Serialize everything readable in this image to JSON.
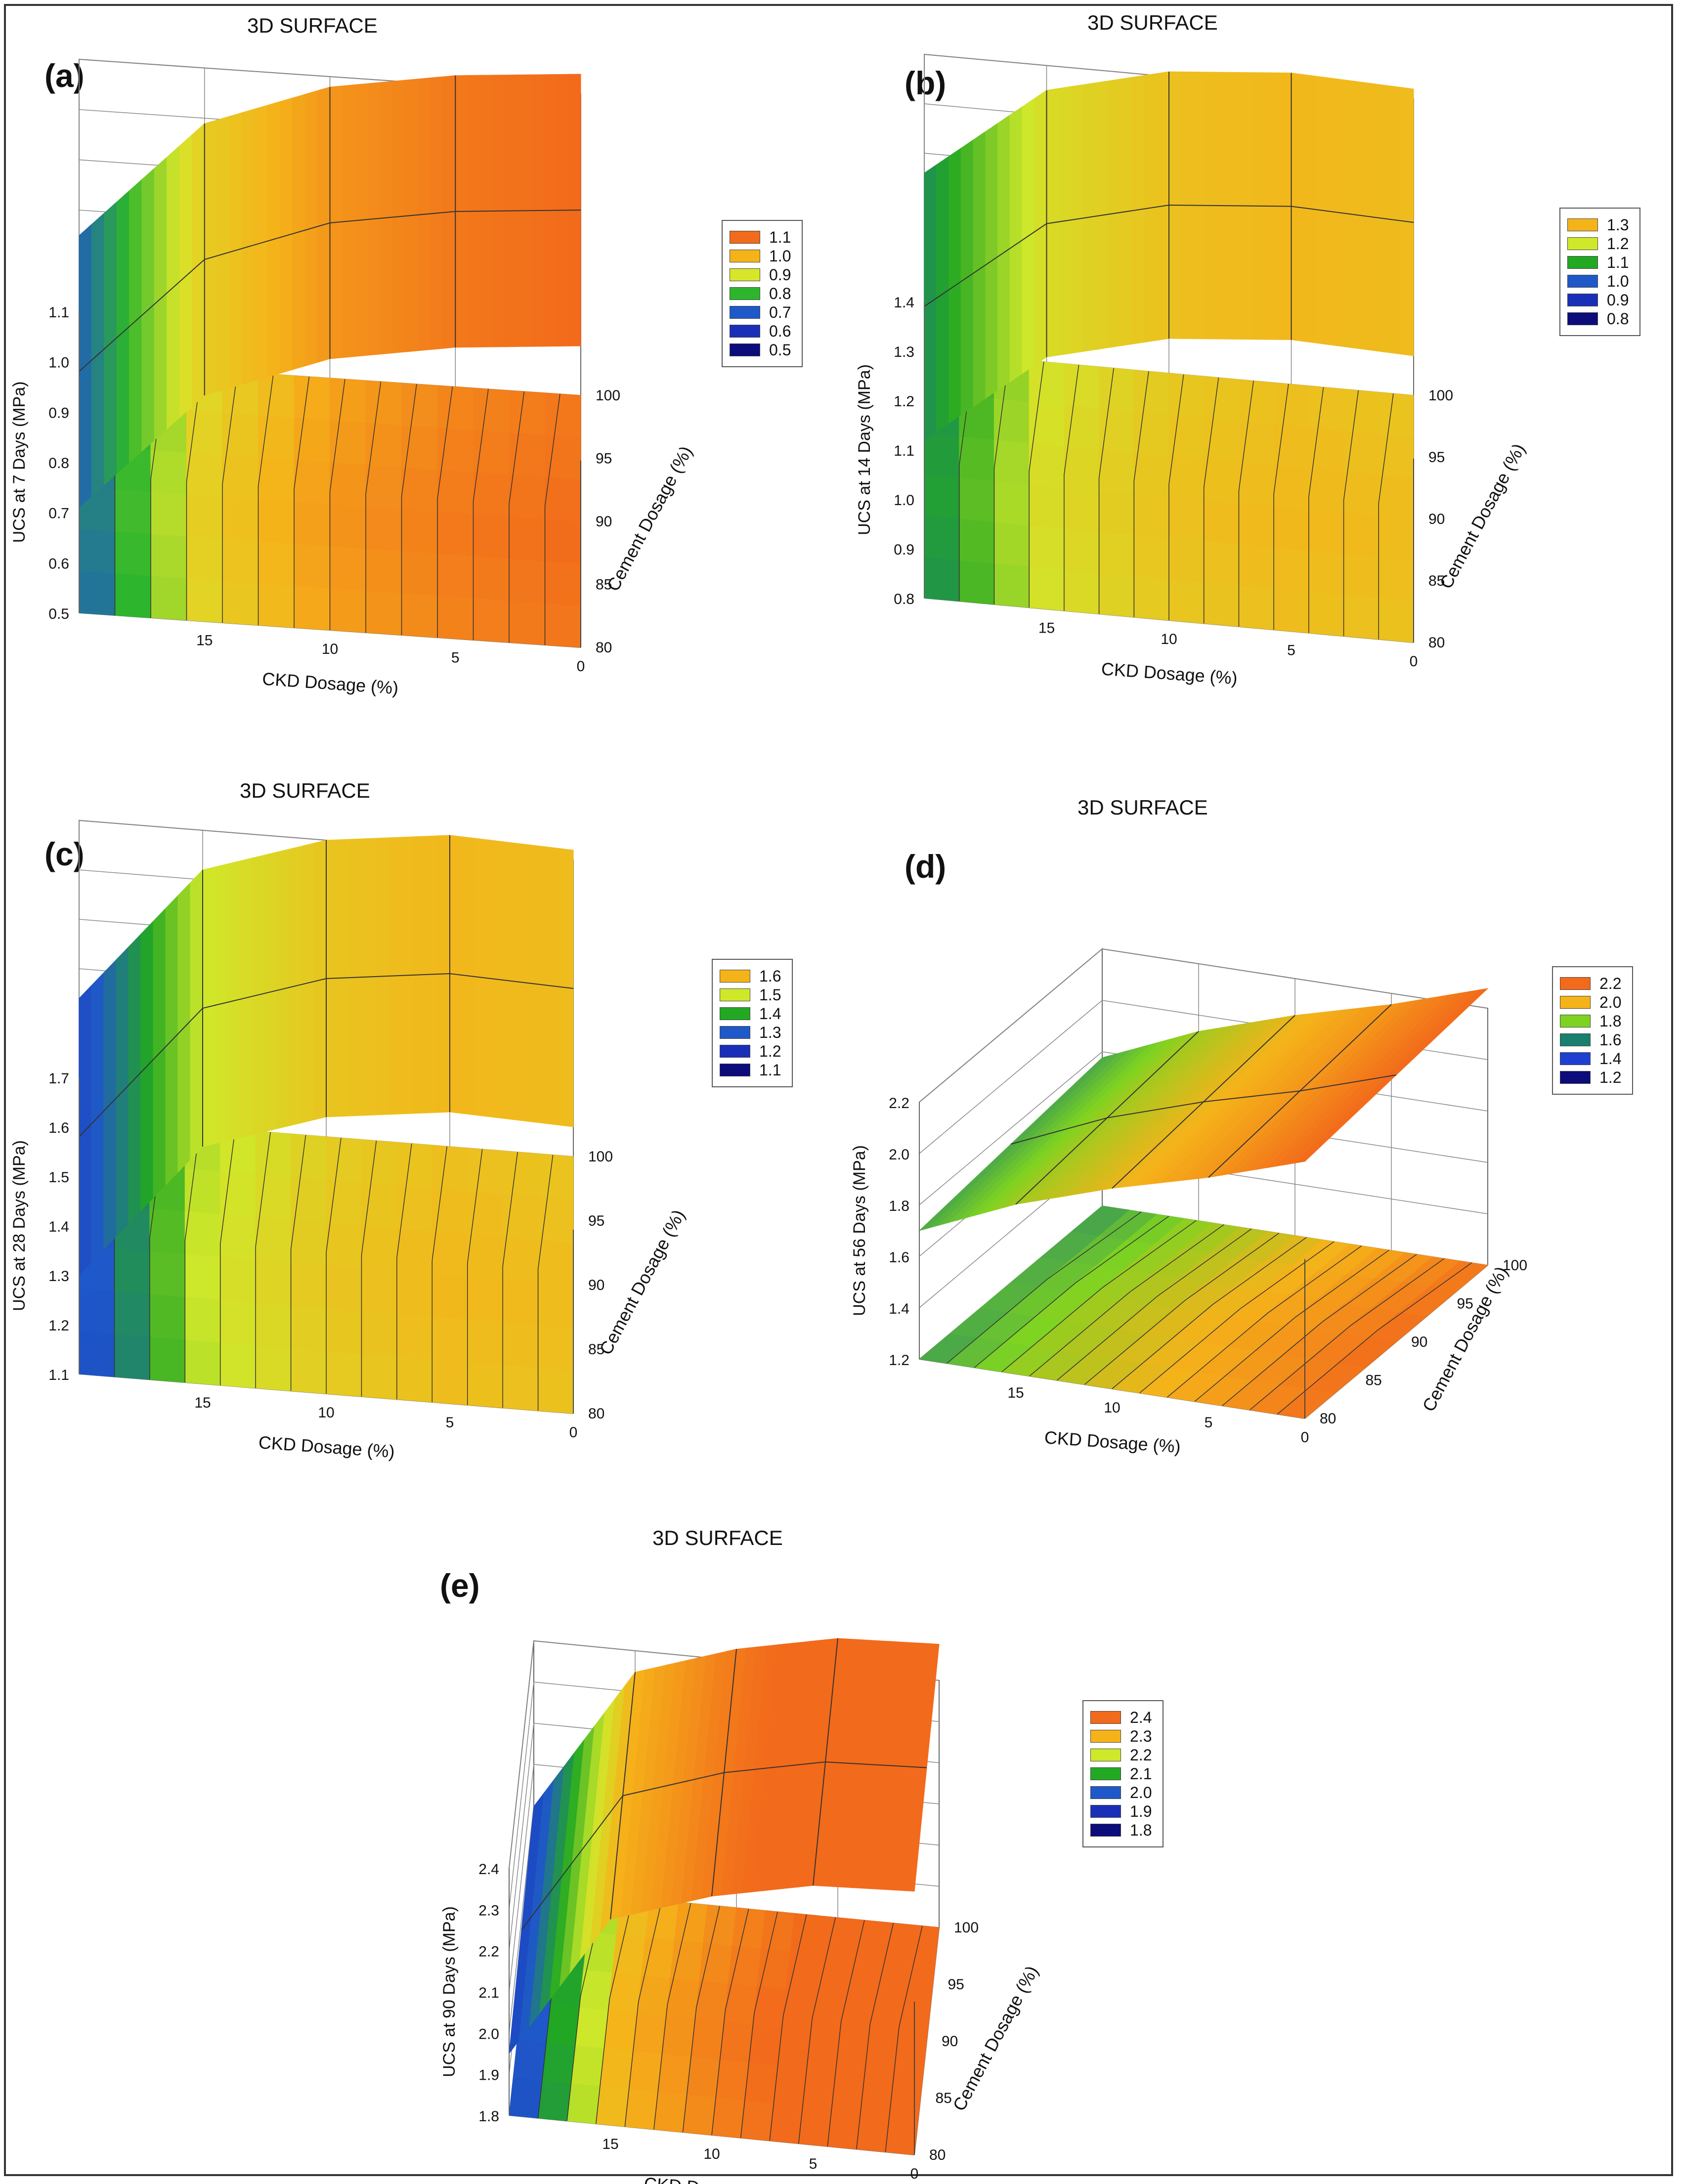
{
  "figure": {
    "border_color": "#333333"
  },
  "chart_data": [
    {
      "type": "3d-surface",
      "panel_label": "(a)",
      "title": "3D SURFACE",
      "xlabel": "CKD Dosage (%)",
      "ylabel": "Cement Dosage (%)",
      "zlabel": "UCS at 7 Days (MPa)",
      "x_ticks": [
        "15",
        "10",
        "5",
        "0"
      ],
      "y_ticks": [
        "80",
        "85",
        "90",
        "95",
        "100"
      ],
      "z_ticks": [
        "0.5",
        "0.6",
        "0.7",
        "0.8",
        "0.9",
        "1.0",
        "1.1"
      ],
      "zlim": [
        0.5,
        1.1
      ],
      "surface_profile": [
        0.71,
        0.95,
        1.04,
        1.08,
        1.1
      ],
      "legend": [
        {
          "label": "1.1",
          "color": "#f26a1b"
        },
        {
          "label": "1.0",
          "color": "#f5b31a"
        },
        {
          "label": "0.9",
          "color": "#d7e62a"
        },
        {
          "label": "0.8",
          "color": "#2db52d"
        },
        {
          "label": "0.7",
          "color": "#1f58c8"
        },
        {
          "label": "0.6",
          "color": "#1a2fb8"
        },
        {
          "label": "0.5",
          "color": "#0c0c7a"
        }
      ]
    },
    {
      "type": "3d-surface",
      "panel_label": "(b)",
      "title": "3D SURFACE",
      "xlabel": "CKD Dosage (%)",
      "ylabel": "Cement Dosage (%)",
      "zlabel": "UCS at 14 Days (MPa)",
      "x_ticks": [
        "15",
        "10",
        "5",
        "0"
      ],
      "y_ticks": [
        "80",
        "85",
        "90",
        "95",
        "100"
      ],
      "z_ticks": [
        "0.8",
        "0.9",
        "1.0",
        "1.1",
        "1.2",
        "1.3",
        "1.4"
      ],
      "zlim": [
        0.8,
        1.4
      ],
      "surface_profile": [
        1.12,
        1.31,
        1.37,
        1.39,
        1.38
      ],
      "legend": [
        {
          "label": "1.3",
          "color": "#f5b31a"
        },
        {
          "label": "1.2",
          "color": "#cfe82a"
        },
        {
          "label": "1.1",
          "color": "#22a822"
        },
        {
          "label": "1.0",
          "color": "#1f58c8"
        },
        {
          "label": "0.9",
          "color": "#1a2fb8"
        },
        {
          "label": "0.8",
          "color": "#0c0c7a"
        }
      ]
    },
    {
      "type": "3d-surface",
      "panel_label": "(c)",
      "title": "3D SURFACE",
      "xlabel": "CKD Dosage (%)",
      "ylabel": "Cement Dosage (%)",
      "zlabel": "UCS at 28 Days (MPa)",
      "x_ticks": [
        "15",
        "10",
        "5",
        "0"
      ],
      "y_ticks": [
        "80",
        "85",
        "90",
        "95",
        "100"
      ],
      "z_ticks": [
        "1.1",
        "1.2",
        "1.3",
        "1.4",
        "1.5",
        "1.6",
        "1.7"
      ],
      "zlim": [
        1.1,
        1.7
      ],
      "surface_profile": [
        1.3,
        1.58,
        1.66,
        1.69,
        1.68
      ],
      "legend": [
        {
          "label": "1.6",
          "color": "#f5b31a"
        },
        {
          "label": "1.5",
          "color": "#cfe82a"
        },
        {
          "label": "1.4",
          "color": "#22a822"
        },
        {
          "label": "1.3",
          "color": "#1f58c8"
        },
        {
          "label": "1.2",
          "color": "#1a2fb8"
        },
        {
          "label": "1.1",
          "color": "#0c0c7a"
        }
      ]
    },
    {
      "type": "3d-surface",
      "panel_label": "(d)",
      "title": "3D SURFACE",
      "xlabel": "CKD Dosage (%)",
      "ylabel": "Cement Dosage (%)",
      "zlabel": "UCS at 56 Days (MPa)",
      "x_ticks": [
        "15",
        "10",
        "5",
        "0"
      ],
      "y_ticks": [
        "80",
        "85",
        "90",
        "95",
        "100"
      ],
      "z_ticks": [
        "1.2",
        "1.4",
        "1.6",
        "1.8",
        "2.0",
        "2.2"
      ],
      "zlim": [
        1.2,
        2.2
      ],
      "surface_profile": [
        1.7,
        1.86,
        1.98,
        2.08,
        2.2
      ],
      "legend": [
        {
          "label": "2.2",
          "color": "#f26a1b"
        },
        {
          "label": "2.0",
          "color": "#f5b31a"
        },
        {
          "label": "1.8",
          "color": "#7ed321"
        },
        {
          "label": "1.6",
          "color": "#1a7f6e"
        },
        {
          "label": "1.4",
          "color": "#1f3fd0"
        },
        {
          "label": "1.2",
          "color": "#0c0c7a"
        }
      ]
    },
    {
      "type": "3d-surface",
      "panel_label": "(e)",
      "title": "3D SURFACE",
      "xlabel": "CKD Dosage (%)",
      "ylabel": "Cement Dosage (%)",
      "zlabel": "UCS at 90 Days (MPa)",
      "x_ticks": [
        "15",
        "10",
        "5",
        "0"
      ],
      "y_ticks": [
        "80",
        "85",
        "90",
        "95",
        "100"
      ],
      "z_ticks": [
        "1.8",
        "1.9",
        "2.0",
        "2.1",
        "2.2",
        "2.3",
        "2.4"
      ],
      "zlim": [
        1.8,
        2.4
      ],
      "surface_profile": [
        1.95,
        2.3,
        2.38,
        2.43,
        2.44
      ],
      "legend": [
        {
          "label": "2.4",
          "color": "#f26a1b"
        },
        {
          "label": "2.3",
          "color": "#f5b31a"
        },
        {
          "label": "2.2",
          "color": "#cfe82a"
        },
        {
          "label": "2.1",
          "color": "#22a822"
        },
        {
          "label": "2.0",
          "color": "#1f58c8"
        },
        {
          "label": "1.9",
          "color": "#1a2fb8"
        },
        {
          "label": "1.8",
          "color": "#0c0c7a"
        }
      ]
    }
  ]
}
